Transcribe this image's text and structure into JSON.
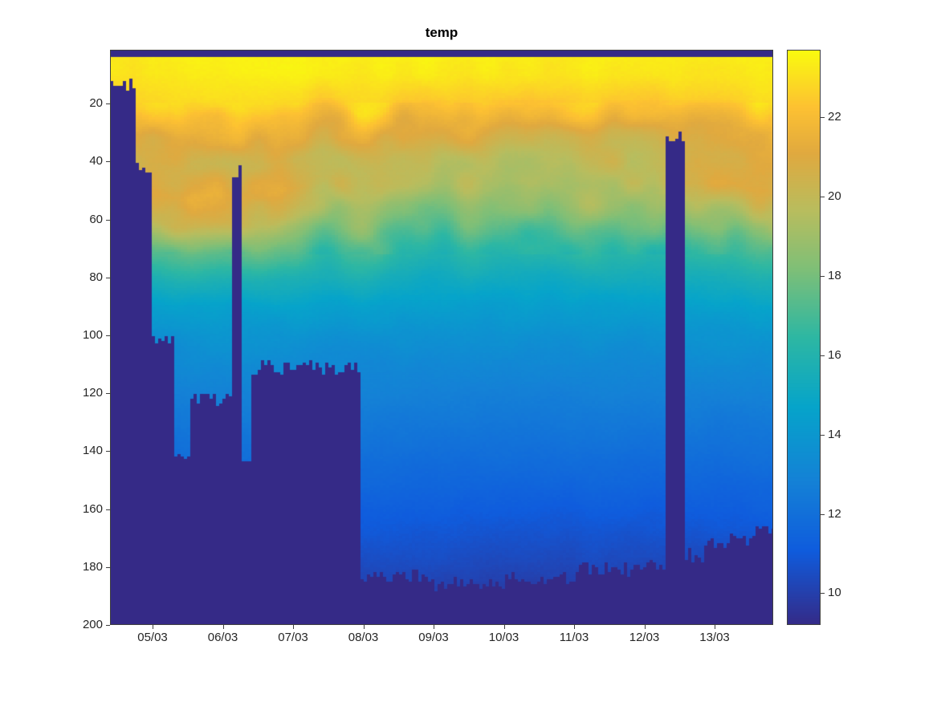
{
  "figure": {
    "title": "temp"
  },
  "chart_data": {
    "type": "heatmap",
    "title": "temp",
    "xlabel": "",
    "ylabel": "",
    "x_tick_labels": [
      "05/03",
      "06/03",
      "07/03",
      "08/03",
      "09/03",
      "10/03",
      "11/03",
      "12/03",
      "13/03"
    ],
    "x_tick_days": [
      0.606,
      1.606,
      2.606,
      3.606,
      4.606,
      5.606,
      6.606,
      7.606,
      8.606
    ],
    "time_range_days": [
      0,
      9.44
    ],
    "y_ticks": [
      20,
      40,
      60,
      80,
      100,
      120,
      140,
      160,
      180,
      200
    ],
    "depth_range": [
      1.4,
      200
    ],
    "caxis": [
      9.2,
      23.7
    ],
    "colorbar_ticks": [
      10,
      12,
      14,
      16,
      18,
      20,
      22
    ],
    "colormap_stops": [
      [
        0,
        "#352a87"
      ],
      [
        0.13,
        "#0f5cdd"
      ],
      [
        0.25,
        "#1481d6"
      ],
      [
        0.38,
        "#06a4ca"
      ],
      [
        0.5,
        "#2db7a3"
      ],
      [
        0.62,
        "#7fbf77"
      ],
      [
        0.72,
        "#b8bd5e"
      ],
      [
        0.82,
        "#e0a93f"
      ],
      [
        0.9,
        "#fdc132"
      ],
      [
        1,
        "#f9fb0e"
      ]
    ],
    "mask_color": "#352a87",
    "surface_band_depth": 4.3,
    "depth_levels": [
      0,
      10,
      20,
      30,
      40,
      50,
      60,
      70,
      80,
      90,
      100,
      110,
      120,
      130,
      140,
      150,
      160,
      170,
      180,
      190,
      200
    ],
    "profiles": [
      {
        "day": 0.0,
        "temps": [
          23.3,
          23.2,
          22.6,
          21.3,
          20.6,
          20.9,
          19.8,
          17.2,
          15.6,
          14.4,
          13.7,
          13.2,
          12.8,
          12.4,
          12.0,
          11.6,
          11.2,
          10.8,
          10.4,
          10.0,
          9.6
        ]
      },
      {
        "day": 0.606,
        "temps": [
          23.3,
          23.2,
          22.7,
          21.2,
          20.7,
          21.2,
          19.9,
          17.4,
          15.7,
          14.5,
          13.7,
          13.2,
          12.8,
          12.4,
          12.0,
          11.6,
          11.2,
          10.8,
          10.4,
          10.0,
          9.6
        ]
      },
      {
        "day": 1.606,
        "temps": [
          23.4,
          23.2,
          22.8,
          21.4,
          20.5,
          21.0,
          20.2,
          17.6,
          15.8,
          14.5,
          13.8,
          13.3,
          12.8,
          12.4,
          12.0,
          11.6,
          11.2,
          10.8,
          10.4,
          10.0,
          9.6
        ]
      },
      {
        "day": 2.606,
        "temps": [
          23.4,
          23.3,
          22.7,
          21.3,
          20.3,
          20.8,
          19.6,
          17.8,
          15.9,
          14.6,
          13.8,
          13.3,
          12.9,
          12.5,
          12.1,
          11.7,
          11.2,
          10.8,
          10.4,
          10.0,
          9.6
        ]
      },
      {
        "day": 3.606,
        "temps": [
          23.4,
          23.2,
          22.5,
          21.0,
          20.0,
          19.6,
          18.4,
          16.9,
          15.6,
          14.5,
          13.7,
          13.2,
          12.8,
          12.4,
          12.0,
          11.6,
          11.2,
          10.8,
          10.4,
          10.0,
          9.6
        ]
      },
      {
        "day": 4.606,
        "temps": [
          23.5,
          23.3,
          22.6,
          21.2,
          19.9,
          19.2,
          18.0,
          16.5,
          15.3,
          14.4,
          13.7,
          13.2,
          12.8,
          12.4,
          12.0,
          11.6,
          11.2,
          10.8,
          10.4,
          10.0,
          9.6
        ]
      },
      {
        "day": 5.606,
        "temps": [
          23.4,
          23.2,
          22.4,
          21.0,
          19.8,
          19.3,
          18.2,
          16.6,
          15.3,
          14.4,
          13.7,
          13.2,
          12.8,
          12.4,
          12.0,
          11.6,
          11.1,
          10.7,
          10.3,
          9.9,
          9.5
        ]
      },
      {
        "day": 6.606,
        "temps": [
          23.4,
          23.2,
          22.4,
          20.9,
          19.9,
          19.5,
          18.3,
          16.7,
          15.4,
          14.4,
          13.7,
          13.2,
          12.8,
          12.4,
          12.0,
          11.6,
          11.1,
          10.7,
          10.3,
          9.9,
          9.5
        ]
      },
      {
        "day": 7.606,
        "temps": [
          23.4,
          23.2,
          22.5,
          21.0,
          20.1,
          19.8,
          18.6,
          16.9,
          15.5,
          14.5,
          13.8,
          13.2,
          12.8,
          12.4,
          12.0,
          11.6,
          11.1,
          10.7,
          10.3,
          9.9,
          9.5
        ]
      },
      {
        "day": 8.606,
        "temps": [
          23.4,
          23.2,
          22.6,
          21.2,
          20.6,
          20.9,
          19.2,
          17.2,
          15.6,
          14.5,
          13.8,
          13.3,
          12.8,
          12.4,
          12.0,
          11.6,
          11.2,
          10.7,
          10.3,
          9.9,
          9.5
        ]
      },
      {
        "day": 9.44,
        "temps": [
          23.4,
          23.2,
          22.7,
          21.3,
          20.8,
          21.0,
          19.4,
          17.3,
          15.7,
          14.6,
          13.8,
          13.3,
          12.9,
          12.4,
          12.0,
          11.6,
          11.2,
          10.8,
          10.4,
          10.0,
          9.6
        ]
      }
    ],
    "bottom_mask": [
      {
        "from": 0.0,
        "to": 0.354,
        "depth": 14
      },
      {
        "from": 0.354,
        "to": 0.606,
        "depth": 42
      },
      {
        "from": 0.606,
        "to": 0.937,
        "depth": 101
      },
      {
        "from": 0.937,
        "to": 1.143,
        "depth": 142
      },
      {
        "from": 1.143,
        "to": 1.726,
        "depth": 122
      },
      {
        "from": 1.726,
        "to": 1.886,
        "depth": 43
      },
      {
        "from": 1.886,
        "to": 1.989,
        "depth": 141
      },
      {
        "from": 1.989,
        "to": 3.577,
        "depth": 111
      },
      {
        "from": 3.577,
        "to": 4.606,
        "depth": 183
      },
      {
        "from": 4.606,
        "to": 5.634,
        "depth": 186
      },
      {
        "from": 5.634,
        "to": 6.629,
        "depth": 184
      },
      {
        "from": 6.629,
        "to": 7.634,
        "depth": 181
      },
      {
        "from": 7.634,
        "to": 7.886,
        "depth": 179
      },
      {
        "from": 7.886,
        "to": 8.171,
        "depth": 31
      },
      {
        "from": 8.171,
        "to": 8.457,
        "depth": 176
      },
      {
        "from": 8.457,
        "to": 8.777,
        "depth": 172
      },
      {
        "from": 8.777,
        "to": 9.177,
        "depth": 171
      },
      {
        "from": 9.177,
        "to": 9.45,
        "depth": 168
      }
    ]
  }
}
